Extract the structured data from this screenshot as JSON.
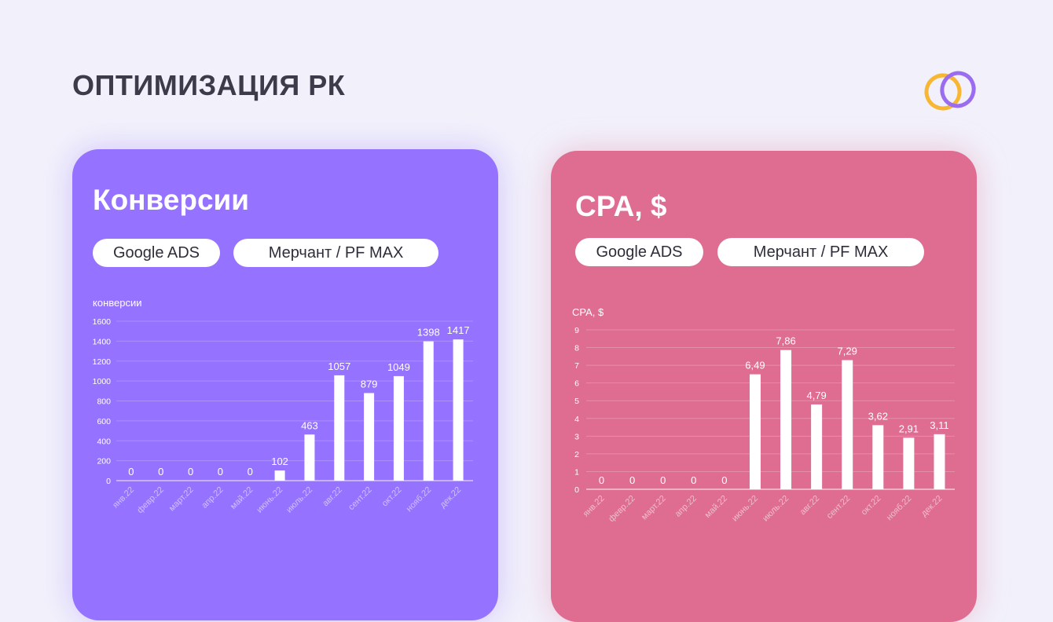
{
  "page": {
    "title": "ОПТИМИЗАЦИЯ РК"
  },
  "colors": {
    "left_card": "#9572ff",
    "right_card": "#de6d91",
    "logo_ring_1": "#f7b733",
    "logo_ring_2": "#9b6cf0"
  },
  "left": {
    "title": "Конверсии",
    "pills": [
      "Google ADS",
      "Мерчант / PF MAX"
    ]
  },
  "right": {
    "title": "CPA, $",
    "pills": [
      "Google ADS",
      "Мерчант / PF MAX"
    ]
  },
  "chart_data": [
    {
      "type": "bar",
      "ylabel": "конверсии",
      "categories": [
        "янв.22",
        "февр.22",
        "март.22",
        "апр.22",
        "май.22",
        "июнь.22",
        "июль.22",
        "авг.22",
        "сент.22",
        "окт.22",
        "нояб.22",
        "дек.22"
      ],
      "values": [
        0,
        0,
        0,
        0,
        0,
        102,
        463,
        1057,
        879,
        1049,
        1398,
        1417
      ],
      "value_labels": [
        "0",
        "0",
        "0",
        "0",
        "0",
        "102",
        "463",
        "1057",
        "879",
        "1049",
        "1398",
        "1417"
      ],
      "yticks": [
        0,
        200,
        400,
        600,
        800,
        1000,
        1200,
        1400,
        1600
      ],
      "ylim": [
        0,
        1600
      ],
      "grid": true
    },
    {
      "type": "bar",
      "ylabel": "CPA, $",
      "categories": [
        "янв.22",
        "февр.22",
        "март.22",
        "апр.22",
        "май.22",
        "июнь.22",
        "июль.22",
        "авг.22",
        "сент.22",
        "окт.22",
        "нояб.22",
        "дек.22"
      ],
      "values": [
        0,
        0,
        0,
        0,
        0,
        6.49,
        7.86,
        4.79,
        7.29,
        3.62,
        2.91,
        3.11
      ],
      "value_labels": [
        "0",
        "0",
        "0",
        "0",
        "0",
        "6,49",
        "7,86",
        "4,79",
        "7,29",
        "3,62",
        "2,91",
        "3,11"
      ],
      "yticks": [
        0,
        1,
        2,
        3,
        4,
        5,
        6,
        7,
        8,
        9
      ],
      "ylim": [
        0,
        9
      ],
      "grid": true
    }
  ]
}
